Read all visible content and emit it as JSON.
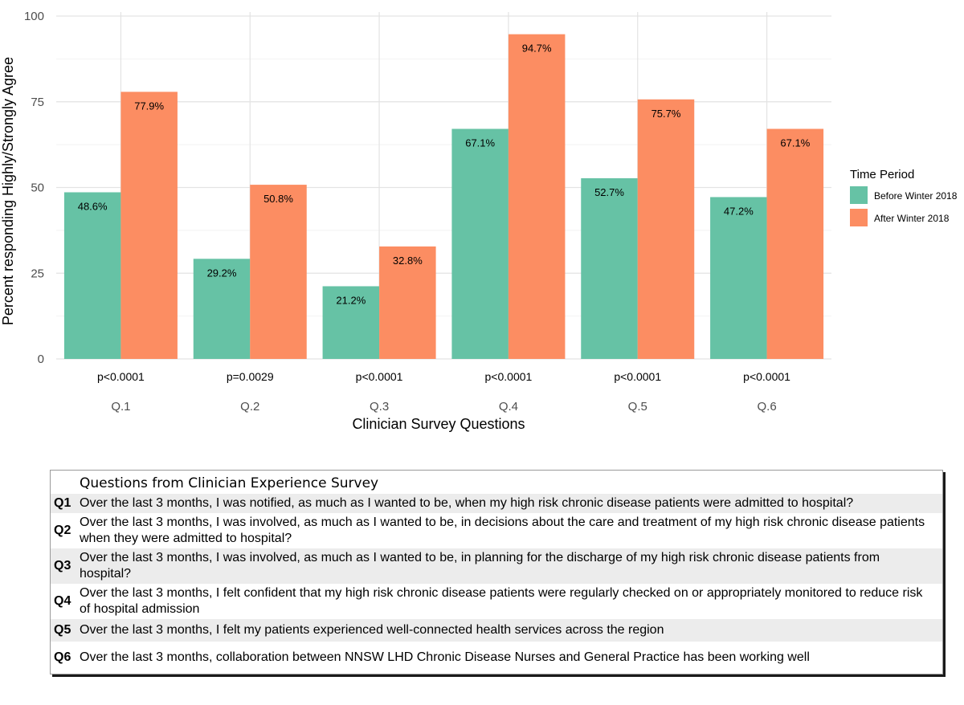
{
  "chart_data": {
    "type": "bar",
    "categories": [
      "Q.1",
      "Q.2",
      "Q.3",
      "Q.4",
      "Q.5",
      "Q.6"
    ],
    "series": [
      {
        "name": "Before Winter 2018",
        "color": "#66c2a5",
        "values": [
          48.6,
          29.2,
          21.2,
          67.1,
          52.7,
          47.2
        ],
        "labels": [
          "48.6%",
          "29.2%",
          "21.2%",
          "67.1%",
          "52.7%",
          "47.2%"
        ]
      },
      {
        "name": "After Winter 2018",
        "color": "#fc8d62",
        "values": [
          77.9,
          50.8,
          32.8,
          94.7,
          75.7,
          67.1
        ],
        "labels": [
          "77.9%",
          "50.8%",
          "32.8%",
          "94.7%",
          "75.7%",
          "67.1%"
        ]
      }
    ],
    "p_values": [
      "p<0.0001",
      "p=0.0029",
      "p<0.0001",
      "p<0.0001",
      "p<0.0001",
      "p<0.0001"
    ],
    "xlabel": "Clinician Survey Questions",
    "ylabel": "Percent responding Highly/Strongly Agree",
    "ylim": [
      0,
      100
    ],
    "yticks": [
      0,
      25,
      50,
      75,
      100
    ],
    "grid": true,
    "legend": {
      "title": "Time Period",
      "placement": "right"
    }
  },
  "table": {
    "header": "Questions from Clinician Experience Survey",
    "rows": [
      {
        "code": "Q1",
        "text": "Over the last 3 months, I was notified, as much as I wanted to be, when my high risk chronic disease patients were admitted to hospital?"
      },
      {
        "code": "Q2",
        "text": "Over the last 3 months, I was involved, as much as I wanted to be, in decisions about the care and treatment of my high risk chronic disease patients when they were admitted to hospital?"
      },
      {
        "code": "Q3",
        "text": "Over the last 3 months, I was involved, as much as I wanted to be, in planning for the discharge of my high risk chronic disease patients from hospital?"
      },
      {
        "code": "Q4",
        "text": "Over the last 3 months, I felt confident that my high risk chronic disease patients were regularly checked on or appropriately monitored to reduce risk of hospital admission"
      },
      {
        "code": "Q5",
        "text": "Over the last 3 months, I felt my patients experienced well-connected health services across the region"
      },
      {
        "code": "Q6",
        "text": "Over the last 3 months, collaboration between NNSW LHD Chronic Disease Nurses and General Practice has been working well"
      }
    ]
  }
}
